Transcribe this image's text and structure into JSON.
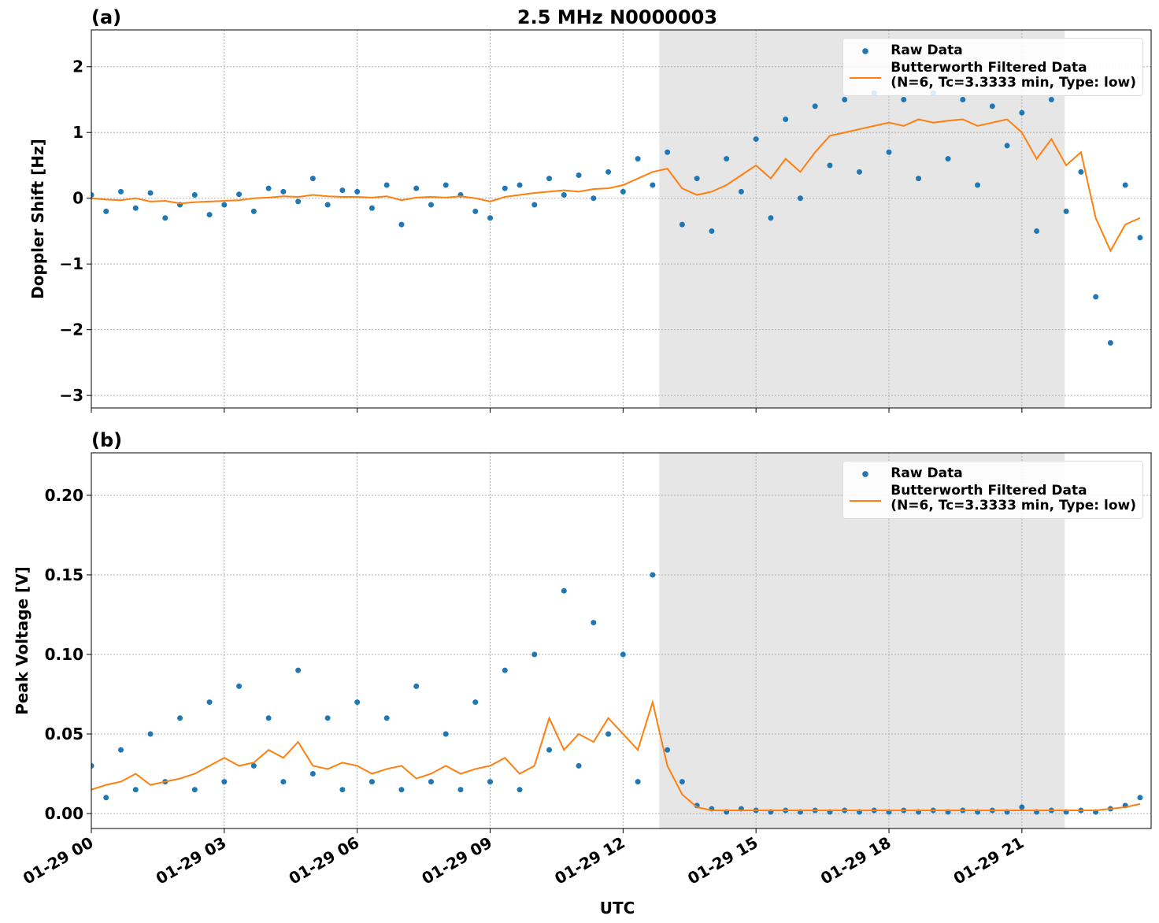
{
  "chart_data": [
    {
      "type": "scatter-line",
      "title": "2.5 MHz N0000003",
      "panel_label": "(a)",
      "ylabel": "Doppler Shift [Hz]",
      "xlim": [
        "01-29 00:00",
        "01-29 23:55"
      ],
      "xticks": [
        "01-29 00",
        "01-29 03",
        "01-29 06",
        "01-29 09",
        "01-29 12",
        "01-29 15",
        "01-29 18",
        "01-29 21"
      ],
      "show_xtick_labels": false,
      "ylim": [
        -3.19,
        2.56
      ],
      "yticks": [
        {
          "value": -3,
          "label": "−3"
        },
        {
          "value": -2,
          "label": "−2"
        },
        {
          "value": -1,
          "label": "−1"
        },
        0,
        1,
        2
      ],
      "grid": true,
      "legend": "upper right",
      "shaded_span": [
        "01-29 12:49",
        "01-29 21:58"
      ],
      "shade_color": "#e6e6e6",
      "x": [
        "01-29 00:00",
        "01-29 00:20",
        "01-29 00:40",
        "01-29 01:00",
        "01-29 01:20",
        "01-29 01:40",
        "01-29 02:00",
        "01-29 02:20",
        "01-29 02:40",
        "01-29 03:00",
        "01-29 03:20",
        "01-29 03:40",
        "01-29 04:00",
        "01-29 04:20",
        "01-29 04:40",
        "01-29 05:00",
        "01-29 05:20",
        "01-29 05:40",
        "01-29 06:00",
        "01-29 06:20",
        "01-29 06:40",
        "01-29 07:00",
        "01-29 07:20",
        "01-29 07:40",
        "01-29 08:00",
        "01-29 08:20",
        "01-29 08:40",
        "01-29 09:00",
        "01-29 09:20",
        "01-29 09:40",
        "01-29 10:00",
        "01-29 10:20",
        "01-29 10:40",
        "01-29 11:00",
        "01-29 11:20",
        "01-29 11:40",
        "01-29 12:00",
        "01-29 12:20",
        "01-29 12:40",
        "01-29 13:00",
        "01-29 13:20",
        "01-29 13:40",
        "01-29 14:00",
        "01-29 14:20",
        "01-29 14:40",
        "01-29 15:00",
        "01-29 15:20",
        "01-29 15:40",
        "01-29 16:00",
        "01-29 16:20",
        "01-29 16:40",
        "01-29 17:00",
        "01-29 17:20",
        "01-29 17:40",
        "01-29 18:00",
        "01-29 18:20",
        "01-29 18:40",
        "01-29 19:00",
        "01-29 19:20",
        "01-29 19:40",
        "01-29 20:00",
        "01-29 20:20",
        "01-29 20:40",
        "01-29 21:00",
        "01-29 21:20",
        "01-29 21:40",
        "01-29 22:00",
        "01-29 22:20",
        "01-29 22:40",
        "01-29 23:00",
        "01-29 23:20",
        "01-29 23:40"
      ],
      "series": [
        {
          "name": "Raw Data",
          "kind": "scatter",
          "color": "#1f77b4",
          "values": [
            0.05,
            -0.2,
            0.1,
            -0.15,
            0.08,
            -0.3,
            -0.1,
            0.05,
            -0.25,
            -0.1,
            0.06,
            -0.2,
            0.15,
            0.1,
            -0.05,
            0.3,
            -0.1,
            0.12,
            0.1,
            -0.15,
            0.2,
            -0.4,
            0.15,
            -0.1,
            0.2,
            0.05,
            -0.2,
            -0.3,
            0.15,
            0.2,
            -0.1,
            0.3,
            0.05,
            0.35,
            0.0,
            0.4,
            0.1,
            0.6,
            0.2,
            0.7,
            -0.4,
            0.3,
            -0.5,
            0.6,
            0.1,
            0.9,
            -0.3,
            1.2,
            0.0,
            1.4,
            0.5,
            1.5,
            0.4,
            1.6,
            0.7,
            1.5,
            0.3,
            1.6,
            0.6,
            1.5,
            0.2,
            1.4,
            0.8,
            1.3,
            -0.5,
            1.5,
            -0.2,
            0.4,
            -1.5,
            -2.2,
            0.2,
            -0.6
          ]
        },
        {
          "name": "Butterworth Filtered Data\n(N=6, Tc=3.3333 min, Type: low)",
          "kind": "line",
          "color": "#ff7f0e",
          "values": [
            0,
            -0.02,
            -0.03,
            0,
            -0.05,
            -0.04,
            -0.08,
            -0.06,
            -0.05,
            -0.04,
            -0.03,
            0,
            0.01,
            0.03,
            0.02,
            0.05,
            0.03,
            0.02,
            0.02,
            0.01,
            0.03,
            -0.03,
            0.01,
            0.02,
            0.01,
            0.03,
            0,
            -0.05,
            0.02,
            0.05,
            0.08,
            0.1,
            0.12,
            0.1,
            0.14,
            0.15,
            0.2,
            0.3,
            0.4,
            0.45,
            0.15,
            0.05,
            0.1,
            0.2,
            0.35,
            0.5,
            0.3,
            0.6,
            0.4,
            0.7,
            0.95,
            1.0,
            1.05,
            1.1,
            1.15,
            1.1,
            1.2,
            1.15,
            1.18,
            1.2,
            1.1,
            1.15,
            1.2,
            1.0,
            0.6,
            0.9,
            0.5,
            0.7,
            -0.3,
            -0.8,
            -0.4,
            -0.3
          ]
        }
      ]
    },
    {
      "type": "scatter-line",
      "panel_label": "(b)",
      "ylabel": "Peak Voltage [V]",
      "xlabel": "UTC",
      "xlim": [
        "01-29 00:00",
        "01-29 23:55"
      ],
      "xticks": [
        "01-29 00",
        "01-29 03",
        "01-29 06",
        "01-29 09",
        "01-29 12",
        "01-29 15",
        "01-29 18",
        "01-29 21"
      ],
      "show_xtick_labels": true,
      "ylim": [
        -0.0094,
        0.2267
      ],
      "yticks": [
        {
          "value": 0,
          "label": "0.00"
        },
        {
          "value": 0.05,
          "label": "0.05"
        },
        {
          "value": 0.1,
          "label": "0.10"
        },
        {
          "value": 0.15,
          "label": "0.15"
        },
        {
          "value": 0.2,
          "label": "0.20"
        }
      ],
      "grid": true,
      "legend": "upper right",
      "shaded_span": [
        "01-29 12:49",
        "01-29 21:58"
      ],
      "shade_color": "#e6e6e6",
      "x": [
        "01-29 00:00",
        "01-29 00:20",
        "01-29 00:40",
        "01-29 01:00",
        "01-29 01:20",
        "01-29 01:40",
        "01-29 02:00",
        "01-29 02:20",
        "01-29 02:40",
        "01-29 03:00",
        "01-29 03:20",
        "01-29 03:40",
        "01-29 04:00",
        "01-29 04:20",
        "01-29 04:40",
        "01-29 05:00",
        "01-29 05:20",
        "01-29 05:40",
        "01-29 06:00",
        "01-29 06:20",
        "01-29 06:40",
        "01-29 07:00",
        "01-29 07:20",
        "01-29 07:40",
        "01-29 08:00",
        "01-29 08:20",
        "01-29 08:40",
        "01-29 09:00",
        "01-29 09:20",
        "01-29 09:40",
        "01-29 10:00",
        "01-29 10:20",
        "01-29 10:40",
        "01-29 11:00",
        "01-29 11:20",
        "01-29 11:40",
        "01-29 12:00",
        "01-29 12:20",
        "01-29 12:40",
        "01-29 13:00",
        "01-29 13:20",
        "01-29 13:40",
        "01-29 14:00",
        "01-29 14:20",
        "01-29 14:40",
        "01-29 15:00",
        "01-29 15:20",
        "01-29 15:40",
        "01-29 16:00",
        "01-29 16:20",
        "01-29 16:40",
        "01-29 17:00",
        "01-29 17:20",
        "01-29 17:40",
        "01-29 18:00",
        "01-29 18:20",
        "01-29 18:40",
        "01-29 19:00",
        "01-29 19:20",
        "01-29 19:40",
        "01-29 20:00",
        "01-29 20:20",
        "01-29 20:40",
        "01-29 21:00",
        "01-29 21:20",
        "01-29 21:40",
        "01-29 22:00",
        "01-29 22:20",
        "01-29 22:40",
        "01-29 23:00",
        "01-29 23:20",
        "01-29 23:40"
      ],
      "series": [
        {
          "name": "Raw Data",
          "kind": "scatter",
          "color": "#1f77b4",
          "values": [
            0.03,
            0.01,
            0.04,
            0.015,
            0.05,
            0.02,
            0.06,
            0.015,
            0.07,
            0.02,
            0.08,
            0.03,
            0.06,
            0.02,
            0.09,
            0.025,
            0.06,
            0.015,
            0.07,
            0.02,
            0.06,
            0.015,
            0.08,
            0.02,
            0.05,
            0.015,
            0.07,
            0.02,
            0.09,
            0.015,
            0.1,
            0.04,
            0.14,
            0.03,
            0.12,
            0.05,
            0.1,
            0.02,
            0.15,
            0.04,
            0.02,
            0.005,
            0.003,
            0.001,
            0.003,
            0.002,
            0.001,
            0.002,
            0.001,
            0.002,
            0.001,
            0.002,
            0.001,
            0.002,
            0.001,
            0.002,
            0.001,
            0.002,
            0.001,
            0.002,
            0.001,
            0.002,
            0.001,
            0.004,
            0.001,
            0.002,
            0.001,
            0.002,
            0.001,
            0.003,
            0.005,
            0.01
          ]
        },
        {
          "name": "Butterworth Filtered Data\n(N=6, Tc=3.3333 min, Type: low)",
          "kind": "line",
          "color": "#ff7f0e",
          "values": [
            0.015,
            0.018,
            0.02,
            0.025,
            0.018,
            0.02,
            0.022,
            0.025,
            0.03,
            0.035,
            0.03,
            0.032,
            0.04,
            0.035,
            0.045,
            0.03,
            0.028,
            0.032,
            0.03,
            0.025,
            0.028,
            0.03,
            0.022,
            0.025,
            0.03,
            0.025,
            0.028,
            0.03,
            0.035,
            0.025,
            0.03,
            0.06,
            0.04,
            0.05,
            0.045,
            0.06,
            0.05,
            0.04,
            0.07,
            0.03,
            0.012,
            0.004,
            0.002,
            0.002,
            0.002,
            0.002,
            0.002,
            0.002,
            0.002,
            0.002,
            0.002,
            0.002,
            0.002,
            0.002,
            0.002,
            0.002,
            0.002,
            0.002,
            0.002,
            0.002,
            0.002,
            0.002,
            0.002,
            0.002,
            0.002,
            0.002,
            0.002,
            0.002,
            0.002,
            0.003,
            0.004,
            0.006
          ]
        }
      ]
    }
  ]
}
